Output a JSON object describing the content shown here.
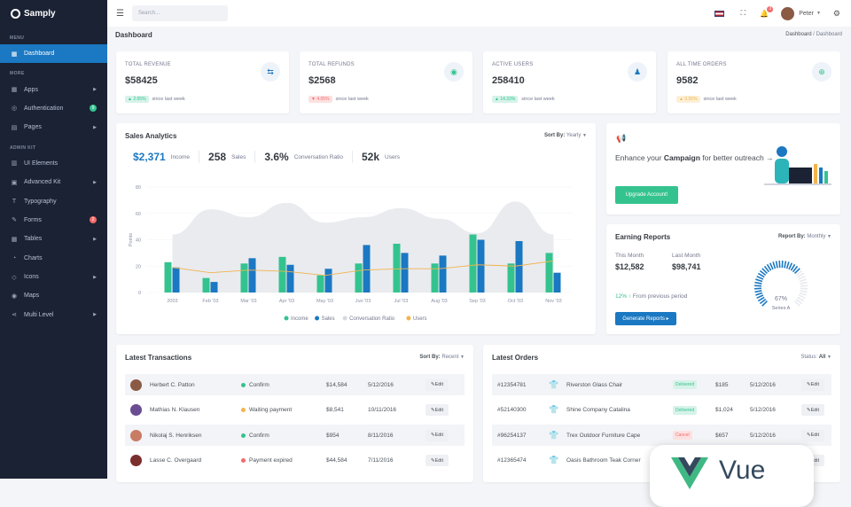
{
  "brand": "Samply",
  "sidebar": {
    "menu_label": "MENU",
    "more_label": "MORE",
    "kit_label": "ADMIN KIT",
    "dashboard": "Dashboard",
    "more": [
      {
        "label": "Apps",
        "icon": "grid-icon",
        "arrow": true
      },
      {
        "label": "Authentication",
        "icon": "user-circle-icon",
        "badge": "9",
        "badge_color": "#34c38f"
      },
      {
        "label": "Pages",
        "icon": "file-icon",
        "arrow": true
      }
    ],
    "kit": [
      {
        "label": "UI Elements",
        "icon": "layers-icon"
      },
      {
        "label": "Advanced Kit",
        "icon": "box-icon",
        "arrow": true
      },
      {
        "label": "Typography",
        "icon": "text-icon"
      },
      {
        "label": "Forms",
        "icon": "brush-icon",
        "badge": "2",
        "badge_color": "#f46a6a"
      },
      {
        "label": "Tables",
        "icon": "table-icon",
        "arrow": true
      },
      {
        "label": "Charts",
        "icon": "chart-icon"
      },
      {
        "label": "Icons",
        "icon": "diamond-icon",
        "arrow": true
      },
      {
        "label": "Maps",
        "icon": "map-pin-icon"
      },
      {
        "label": "Multi Level",
        "icon": "share-icon",
        "arrow": true
      }
    ]
  },
  "topbar": {
    "search_placeholder": "Search...",
    "notif_count": "3",
    "user": "Peter"
  },
  "page": {
    "title": "Dashboard",
    "crumb1": "Dashboard",
    "crumb_sep": "/",
    "crumb2": "Dashboard"
  },
  "stats": [
    {
      "label": "TOTAL REVENUE",
      "value": "$58425",
      "change": "▲ 2.65%",
      "since": "since last week",
      "pill_bg": "#d6f3e9",
      "pill_fg": "#34c38f",
      "icon": "money-icon",
      "icon_char": "⇆",
      "icon_color": "#1b78c2"
    },
    {
      "label": "TOTAL REFUNDS",
      "value": "$2568",
      "change": "▼ 4.05%",
      "since": "since last week",
      "pill_bg": "#fde1e1",
      "pill_fg": "#f46a6a",
      "icon": "refund-icon",
      "icon_char": "◉",
      "icon_color": "#34c38f"
    },
    {
      "label": "ACTIVE USERS",
      "value": "258410",
      "change": "▲ 14.33%",
      "since": "since last week",
      "pill_bg": "#d6f3e9",
      "pill_fg": "#34c38f",
      "icon": "users-icon",
      "icon_char": "♟",
      "icon_color": "#1b78c2"
    },
    {
      "label": "ALL TIME ORDERS",
      "value": "9582",
      "change": "▲ 0.55%",
      "since": "since last week",
      "pill_bg": "#fdf0d8",
      "pill_fg": "#f1b44c",
      "icon": "cart-icon",
      "icon_char": "⊕",
      "icon_color": "#34c38f"
    }
  ],
  "analytics": {
    "title": "Sales Analytics",
    "sort_label": "Sort By:",
    "sort_value": "Yearly",
    "kpis": [
      {
        "value": "$2,371",
        "label": "Income",
        "highlight": true
      },
      {
        "value": "258",
        "label": "Sales"
      },
      {
        "value": "3.6%",
        "label": "Conversation Ratio"
      },
      {
        "value": "52k",
        "label": "Users"
      }
    ]
  },
  "chart_data": {
    "type": "bar",
    "ylabel": "Points",
    "ylim": [
      0,
      80
    ],
    "yticks": [
      0,
      20,
      40,
      60,
      80
    ],
    "categories": [
      "2003",
      "Feb '03",
      "Mar '03",
      "Apr '03",
      "May '03",
      "Jun '03",
      "Jul '03",
      "Aug '03",
      "Sep '03",
      "Oct '03",
      "Nov '03"
    ],
    "series": [
      {
        "name": "Income",
        "kind": "bar",
        "color": "#34c38f",
        "values": [
          23,
          11,
          22,
          27,
          13,
          22,
          37,
          22,
          44,
          22,
          30
        ]
      },
      {
        "name": "Sales",
        "kind": "bar",
        "color": "#1b78c2",
        "values": [
          19,
          8,
          26,
          21,
          18,
          36,
          30,
          28,
          40,
          39,
          15
        ]
      },
      {
        "name": "Conversation Ratio",
        "kind": "area",
        "color": "#e9ebef",
        "values": [
          44,
          63,
          57,
          68,
          53,
          57,
          64,
          56,
          45,
          69,
          44
        ]
      },
      {
        "name": "Users",
        "kind": "line",
        "color": "#f1b44c",
        "values": [
          19,
          15,
          17,
          16,
          13,
          17,
          18,
          18,
          21,
          20,
          24
        ]
      }
    ]
  },
  "campaign": {
    "pre": "Enhance your ",
    "bold": "Campaign",
    "post": " for better outreach →",
    "button": "Upgrade Account!"
  },
  "earning": {
    "title": "Earning Reports",
    "sort_label": "Report By:",
    "sort_value": "Monthly",
    "this_label": "This Month",
    "this_value": "$12,582",
    "last_label": "Last Month",
    "last_value": "$98,741",
    "change_pct": "12%",
    "change_text": "From previous period",
    "button": "Generate Reports",
    "gauge_value": "67%",
    "gauge_label": "Series A",
    "gauge_fraction": 0.67
  },
  "transactions": {
    "title": "Latest Transactions",
    "sort_label": "Sort By:",
    "sort_value": "Recent",
    "rows": [
      {
        "name": "Herbert C. Patton",
        "status": "Confirm",
        "status_color": "#34c38f",
        "amount": "$14,584",
        "date": "5/12/2016",
        "edit": "Edit",
        "avatar": "#8a5a44"
      },
      {
        "name": "Mathias N. Klausen",
        "status": "Waiting payment",
        "status_color": "#f1b44c",
        "amount": "$8,541",
        "date": "10/11/2016",
        "edit": "Edit",
        "avatar": "#6a4c93"
      },
      {
        "name": "Nikolaj S. Henriksen",
        "status": "Confirm",
        "status_color": "#34c38f",
        "amount": "$954",
        "date": "8/11/2016",
        "edit": "Edit",
        "avatar": "#c97b63"
      },
      {
        "name": "Lasse C. Overgaard",
        "status": "Payment expired",
        "status_color": "#f46a6a",
        "amount": "$44,584",
        "date": "7/11/2016",
        "edit": "Edit",
        "avatar": "#7a2e2e"
      }
    ]
  },
  "orders": {
    "title": "Latest Orders",
    "status_label": "Status:",
    "status_value": "All",
    "rows": [
      {
        "id": "#12354781",
        "product": "Riverston Glass Chair",
        "status": "Delivered",
        "st_bg": "#d6f3e9",
        "st_fg": "#34c38f",
        "price": "$185",
        "date": "5/12/2016",
        "edit": "Edit",
        "color": "#8b1e1e"
      },
      {
        "id": "#52140300",
        "product": "Shine Company Catalina",
        "status": "Delivered",
        "st_bg": "#d6f3e9",
        "st_fg": "#34c38f",
        "price": "$1,024",
        "date": "5/12/2016",
        "edit": "Edit",
        "color": "#5b8fc7"
      },
      {
        "id": "#96254137",
        "product": "Trex Outdoor Furniture Cape",
        "status": "Cancel",
        "st_bg": "#fde1e1",
        "st_fg": "#f46a6a",
        "price": "$657",
        "date": "5/12/2016",
        "edit": "Edit",
        "color": "#222222"
      },
      {
        "id": "#12365474",
        "product": "Oasis Bathroom Teak Corner",
        "status": "",
        "st_bg": "#ffffff",
        "st_fg": "#ffffff",
        "price": "",
        "date": "",
        "edit": "Edit",
        "color": "#4a3a8c"
      }
    ]
  },
  "vue_badge": "Vue"
}
